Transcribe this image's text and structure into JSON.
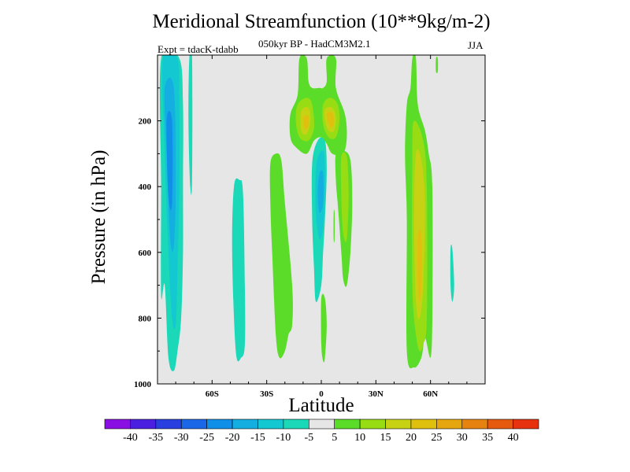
{
  "chart_data": {
    "type": "contour",
    "title": "Meridional Streamfunction (10**9kg/m-2)",
    "subtitle": "050kyr BP - HadCM3M2.1",
    "experiment": "Expt = tdacK-tdabb",
    "season": "JJA",
    "xlabel": "Latitude",
    "ylabel": "Pressure (in hPa)",
    "xlim": [
      -90,
      90
    ],
    "ylim": [
      1000,
      0
    ],
    "x_ticks": [
      {
        "value": -60,
        "label": "60S"
      },
      {
        "value": -30,
        "label": "30S"
      },
      {
        "value": 0,
        "label": "0"
      },
      {
        "value": 30,
        "label": "30N"
      },
      {
        "value": 60,
        "label": "60N"
      }
    ],
    "y_ticks": [
      {
        "value": 200,
        "label": "200"
      },
      {
        "value": 400,
        "label": "400"
      },
      {
        "value": 600,
        "label": "600"
      },
      {
        "value": 800,
        "label": "800"
      },
      {
        "value": 1000,
        "label": "1000"
      }
    ],
    "background_color": "#e6e6e6",
    "colorbar": {
      "levels": [
        "-40",
        "-35",
        "-30",
        "-25",
        "-20",
        "-15",
        "-10",
        "-5",
        "5",
        "10",
        "15",
        "20",
        "25",
        "30",
        "35",
        "40"
      ],
      "colors": [
        "#8a0fe2",
        "#4a1fe0",
        "#2a3fe0",
        "#1a67e8",
        "#0f8fe8",
        "#14aee0",
        "#14c8d2",
        "#1ad8b8",
        "#e6e6e6",
        "#5adc28",
        "#98dc14",
        "#c8d214",
        "#e0c00f",
        "#e6a60f",
        "#e6820f",
        "#e65a0f",
        "#e6320f"
      ]
    },
    "regions": [
      {
        "name": "southern-polar-outer",
        "level": -5,
        "points": [
          [
            -88,
            10
          ],
          [
            -78,
            10
          ],
          [
            -76,
            150
          ],
          [
            -76,
            400
          ],
          [
            -76,
            600
          ],
          [
            -77,
            800
          ],
          [
            -79,
            900
          ],
          [
            -81,
            960
          ],
          [
            -84,
            920
          ],
          [
            -86,
            700
          ],
          [
            -88,
            730
          ],
          [
            -88,
            400
          ]
        ]
      },
      {
        "name": "southern-polar-mid",
        "level": -10,
        "points": [
          [
            -87,
            10
          ],
          [
            -79,
            10
          ],
          [
            -78,
            150
          ],
          [
            -78,
            400
          ],
          [
            -79,
            650
          ],
          [
            -80,
            820
          ],
          [
            -82,
            800
          ],
          [
            -84,
            600
          ],
          [
            -86,
            300
          ]
        ]
      },
      {
        "name": "southern-polar-core",
        "level": -15,
        "points": [
          [
            -86,
            100
          ],
          [
            -81,
            100
          ],
          [
            -80,
            400
          ],
          [
            -81,
            580
          ],
          [
            -83,
            560
          ],
          [
            -85,
            300
          ]
        ]
      },
      {
        "name": "southern-polar-inner",
        "level": -20,
        "points": [
          [
            -85,
            200
          ],
          [
            -82,
            200
          ],
          [
            -82,
            450
          ],
          [
            -84,
            430
          ]
        ]
      },
      {
        "name": "southern-sliver",
        "level": -5,
        "points": [
          [
            -72.5,
            10
          ],
          [
            -71,
            10
          ],
          [
            -71,
            380
          ],
          [
            -72,
            400
          ],
          [
            -73,
            200
          ]
        ]
      },
      {
        "name": "southern-midlat-cell",
        "level": -5,
        "points": [
          [
            -48,
            400
          ],
          [
            -45,
            380
          ],
          [
            -43,
            420
          ],
          [
            -42,
            700
          ],
          [
            -42,
            880
          ],
          [
            -44,
            920
          ],
          [
            -47,
            900
          ],
          [
            -49,
            600
          ]
        ]
      },
      {
        "name": "tropical-negative-cell",
        "level": -5,
        "points": [
          [
            -2,
            260
          ],
          [
            2,
            260
          ],
          [
            3,
            350
          ],
          [
            2,
            500
          ],
          [
            1,
            600
          ],
          [
            0,
            700
          ],
          [
            -3,
            750
          ],
          [
            -4,
            650
          ],
          [
            -5,
            500
          ],
          [
            -5,
            330
          ]
        ]
      },
      {
        "name": "tropical-negative-mid",
        "level": -10,
        "points": [
          [
            -1,
            300
          ],
          [
            1.5,
            300
          ],
          [
            2,
            400
          ],
          [
            1,
            520
          ],
          [
            -1,
            560
          ],
          [
            -3,
            480
          ],
          [
            -3,
            350
          ]
        ]
      },
      {
        "name": "tropical-negative-core",
        "level": -15,
        "points": [
          [
            -1,
            360
          ],
          [
            1,
            360
          ],
          [
            1,
            450
          ],
          [
            -1,
            480
          ],
          [
            -2,
            420
          ]
        ]
      },
      {
        "name": "northern-small-negative",
        "level": -5,
        "points": [
          [
            71,
            590
          ],
          [
            72,
            590
          ],
          [
            73,
            700
          ],
          [
            72,
            750
          ],
          [
            71,
            700
          ]
        ]
      },
      {
        "name": "subtropical-south-positive",
        "level": 5,
        "points": [
          [
            -28,
            330
          ],
          [
            -25,
            300
          ],
          [
            -22,
            320
          ],
          [
            -20,
            450
          ],
          [
            -16,
            700
          ],
          [
            -16,
            820
          ],
          [
            -18,
            850
          ],
          [
            -20,
            900
          ],
          [
            -23,
            920
          ],
          [
            -25,
            850
          ],
          [
            -27,
            600
          ],
          [
            -28,
            450
          ]
        ]
      },
      {
        "name": "upper-positive-band",
        "level": 5,
        "points": [
          [
            -12,
            10
          ],
          [
            -8,
            10
          ],
          [
            -7,
            80
          ],
          [
            -5,
            100
          ],
          [
            -1,
            100
          ],
          [
            1,
            100
          ],
          [
            3,
            80
          ],
          [
            3,
            10
          ],
          [
            8,
            10
          ],
          [
            8,
            100
          ],
          [
            13,
            180
          ],
          [
            14,
            250
          ],
          [
            12,
            300
          ],
          [
            6,
            300
          ],
          [
            3,
            270
          ],
          [
            0,
            250
          ],
          [
            -4,
            260
          ],
          [
            -8,
            300
          ],
          [
            -14,
            280
          ],
          [
            -17,
            250
          ],
          [
            -17,
            180
          ],
          [
            -13,
            120
          ]
        ]
      },
      {
        "name": "upper-positive-left-10",
        "level": 10,
        "points": [
          [
            -13,
            150
          ],
          [
            -8,
            130
          ],
          [
            -5,
            150
          ],
          [
            -4,
            220
          ],
          [
            -7,
            260
          ],
          [
            -12,
            250
          ],
          [
            -14,
            200
          ]
        ]
      },
      {
        "name": "upper-positive-left-15",
        "level": 15,
        "points": [
          [
            -11,
            170
          ],
          [
            -7,
            160
          ],
          [
            -6,
            200
          ],
          [
            -8,
            240
          ],
          [
            -11,
            230
          ]
        ]
      },
      {
        "name": "upper-positive-left-20",
        "level": 20,
        "points": [
          [
            -10,
            190
          ],
          [
            -7,
            185
          ],
          [
            -7,
            215
          ],
          [
            -9,
            225
          ]
        ]
      },
      {
        "name": "upper-positive-right-10",
        "level": 10,
        "points": [
          [
            1,
            150
          ],
          [
            5,
            130
          ],
          [
            9,
            150
          ],
          [
            10,
            200
          ],
          [
            8,
            250
          ],
          [
            4,
            250
          ],
          [
            1,
            210
          ]
        ]
      },
      {
        "name": "upper-positive-right-15",
        "level": 15,
        "points": [
          [
            2,
            165
          ],
          [
            6,
            160
          ],
          [
            8,
            190
          ],
          [
            7,
            230
          ],
          [
            4,
            230
          ],
          [
            2,
            200
          ]
        ]
      },
      {
        "name": "upper-positive-right-20",
        "level": 20,
        "points": [
          [
            3,
            180
          ],
          [
            6,
            175
          ],
          [
            7,
            205
          ],
          [
            5,
            220
          ]
        ]
      },
      {
        "name": "northern-tropical-positive",
        "level": 5,
        "points": [
          [
            8,
            300
          ],
          [
            12,
            290
          ],
          [
            16,
            320
          ],
          [
            17,
            450
          ],
          [
            16,
            600
          ],
          [
            14,
            700
          ],
          [
            12,
            680
          ],
          [
            11,
            600
          ],
          [
            9,
            450
          ],
          [
            8,
            380
          ]
        ]
      },
      {
        "name": "northern-tropical-positive-10",
        "level": 10,
        "points": [
          [
            11,
            310
          ],
          [
            14,
            310
          ],
          [
            15,
            420
          ],
          [
            14,
            560
          ],
          [
            12,
            540
          ],
          [
            11,
            430
          ]
        ]
      },
      {
        "name": "equatorial-lower-positive",
        "level": 5,
        "points": [
          [
            0,
            740
          ],
          [
            2,
            740
          ],
          [
            3,
            820
          ],
          [
            2,
            920
          ],
          [
            1,
            930
          ],
          [
            0,
            880
          ]
        ]
      },
      {
        "name": "equatorial-mid-sliver",
        "level": 5,
        "points": [
          [
            6.8,
            480
          ],
          [
            7.3,
            480
          ],
          [
            7.3,
            560
          ],
          [
            6.8,
            560
          ]
        ]
      },
      {
        "name": "northern-midlat-positive",
        "level": 5,
        "points": [
          [
            50,
            10
          ],
          [
            52,
            10
          ],
          [
            53,
            150
          ],
          [
            57,
            230
          ],
          [
            59,
            300
          ],
          [
            61,
            400
          ],
          [
            61,
            800
          ],
          [
            60,
            920
          ],
          [
            57,
            860
          ],
          [
            55,
            920
          ],
          [
            51,
            950
          ],
          [
            47,
            900
          ],
          [
            47,
            500
          ],
          [
            46,
            300
          ],
          [
            47,
            150
          ],
          [
            49,
            100
          ]
        ]
      },
      {
        "name": "northern-midlat-positive-10",
        "level": 10,
        "points": [
          [
            51,
            200
          ],
          [
            56,
            260
          ],
          [
            58,
            400
          ],
          [
            58,
            800
          ],
          [
            56,
            880
          ],
          [
            54,
            900
          ],
          [
            52,
            850
          ],
          [
            50,
            700
          ],
          [
            50,
            300
          ]
        ]
      },
      {
        "name": "northern-midlat-positive-15",
        "level": 15,
        "points": [
          [
            52,
            300
          ],
          [
            55,
            320
          ],
          [
            57,
            450
          ],
          [
            56,
            700
          ],
          [
            54,
            800
          ],
          [
            52,
            750
          ],
          [
            51,
            500
          ]
        ]
      },
      {
        "name": "northern-midlat-positive-20",
        "level": 20,
        "points": [
          [
            53,
            550
          ],
          [
            55,
            550
          ],
          [
            55,
            700
          ],
          [
            54,
            750
          ],
          [
            53,
            700
          ]
        ]
      },
      {
        "name": "northern-sliver-right",
        "level": 5,
        "points": [
          [
            63,
            10
          ],
          [
            64,
            10
          ],
          [
            64,
            50
          ],
          [
            63,
            50
          ]
        ]
      }
    ]
  }
}
